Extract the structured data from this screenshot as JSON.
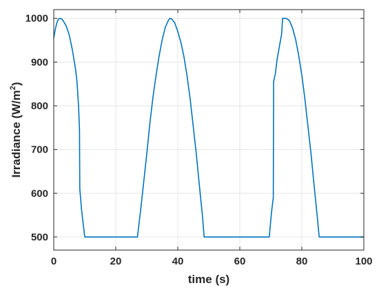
{
  "chart_data": {
    "type": "line",
    "title": "",
    "xlabel": "time (s)",
    "ylabel_main": "Irradiance (W/m",
    "ylabel_sup": "2",
    "ylabel_close": ")",
    "xlim": [
      0,
      100
    ],
    "ylim": [
      470,
      1020
    ],
    "xticks": [
      0,
      20,
      40,
      60,
      80,
      100
    ],
    "yticks": [
      500,
      600,
      700,
      800,
      900,
      1000
    ],
    "grid": true,
    "series": [
      {
        "color": "#0072BD",
        "points": [
          [
            0,
            955
          ],
          [
            0.5,
            975
          ],
          [
            1,
            990
          ],
          [
            1.5,
            998
          ],
          [
            2,
            1000
          ],
          [
            2.5,
            999
          ],
          [
            3,
            995
          ],
          [
            4,
            983
          ],
          [
            5,
            962
          ],
          [
            6,
            928
          ],
          [
            7,
            885
          ],
          [
            7.5,
            855
          ],
          [
            8,
            800
          ],
          [
            8.3,
            745
          ],
          [
            8.4,
            610
          ],
          [
            9,
            560
          ],
          [
            10,
            500
          ],
          [
            27,
            500
          ],
          [
            28,
            560
          ],
          [
            29,
            625
          ],
          [
            30,
            690
          ],
          [
            31,
            760
          ],
          [
            32,
            820
          ],
          [
            33,
            870
          ],
          [
            34,
            915
          ],
          [
            35,
            952
          ],
          [
            36,
            980
          ],
          [
            37,
            996
          ],
          [
            37.5,
            1000
          ],
          [
            38,
            999
          ],
          [
            39,
            990
          ],
          [
            40,
            970
          ],
          [
            41,
            945
          ],
          [
            42,
            912
          ],
          [
            43,
            868
          ],
          [
            44,
            815
          ],
          [
            45,
            752
          ],
          [
            46,
            688
          ],
          [
            47,
            615
          ],
          [
            48,
            545
          ],
          [
            48.5,
            500
          ],
          [
            69.5,
            500
          ],
          [
            70.2,
            555
          ],
          [
            70.8,
            590
          ],
          [
            70.9,
            855
          ],
          [
            71.5,
            875
          ],
          [
            72,
            905
          ],
          [
            73,
            945
          ],
          [
            73.5,
            965
          ],
          [
            73.8,
            1000
          ],
          [
            75,
            1000
          ],
          [
            76,
            995
          ],
          [
            77,
            978
          ],
          [
            78,
            952
          ],
          [
            79,
            915
          ],
          [
            80,
            870
          ],
          [
            81,
            815
          ],
          [
            82,
            752
          ],
          [
            83,
            688
          ],
          [
            84,
            615
          ],
          [
            85,
            545
          ],
          [
            85.6,
            500
          ],
          [
            100,
            500
          ]
        ]
      }
    ]
  }
}
